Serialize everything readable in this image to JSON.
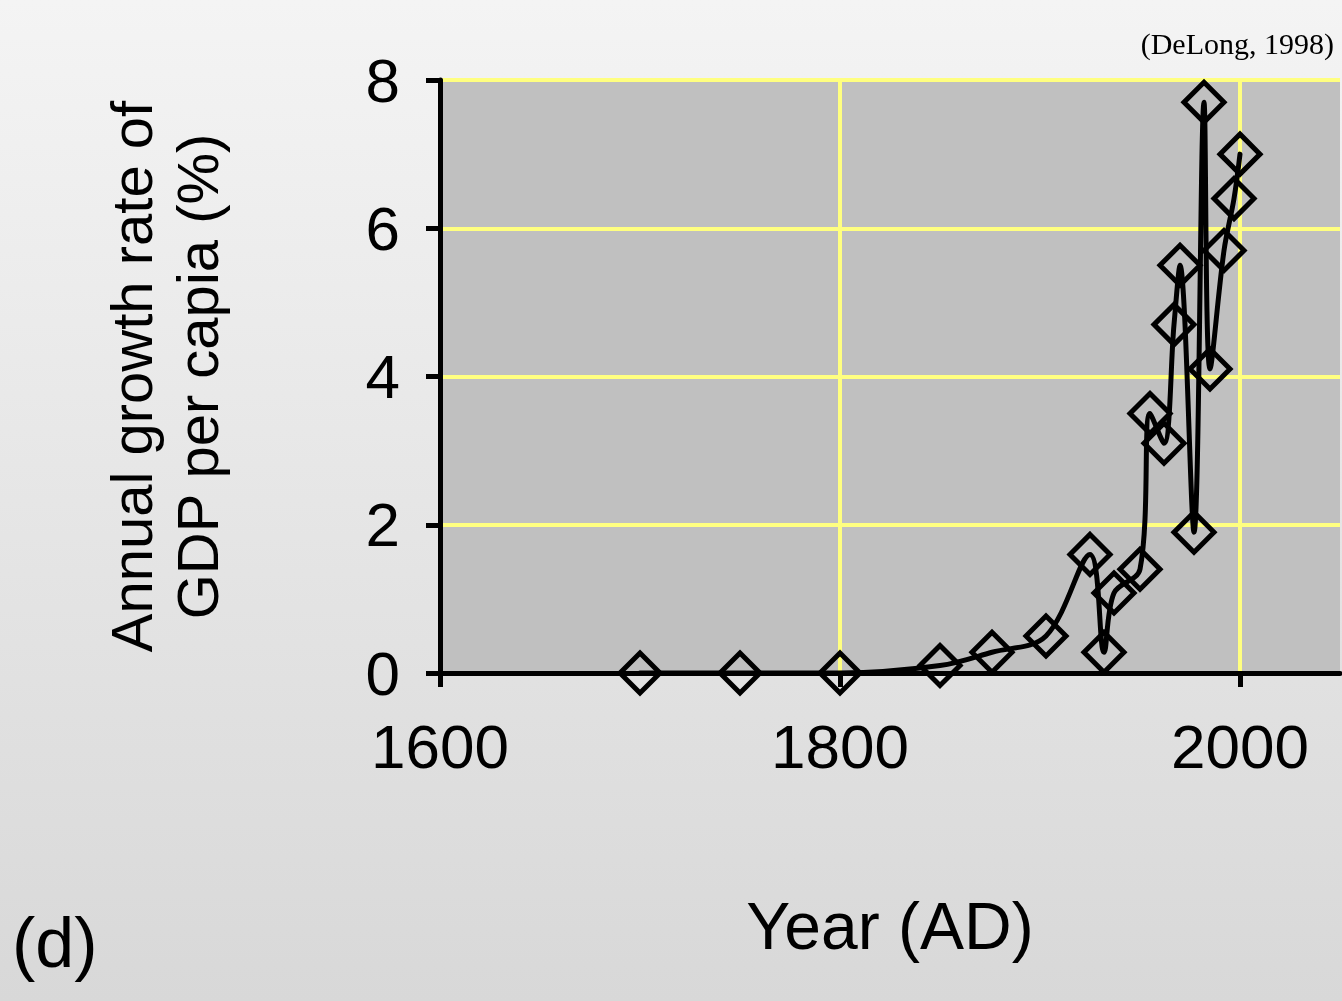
{
  "chart_data": {
    "type": "line",
    "xlabel": "Year (AD)",
    "ylabel": "Annual growth rate of\nGDP per capia (%)",
    "annotations": [
      "(DeLong, 1998)",
      "(d)"
    ],
    "x": [
      1700,
      1750,
      1800,
      1850,
      1876,
      1903,
      1925,
      1932,
      1937,
      1950,
      1955,
      1962,
      1967,
      1970,
      1977,
      1982,
      1985,
      1992,
      1997,
      2000
    ],
    "series": [
      {
        "color": "#000000",
        "values": [
          0,
          0,
          0,
          0.1,
          0.28,
          0.5,
          1.6,
          0.28,
          1.08,
          1.4,
          3.5,
          3.1,
          4.7,
          5.5,
          1.9,
          7.7,
          4.1,
          5.7,
          6.4,
          7.0
        ]
      }
    ],
    "xlim": [
      1600,
      2050
    ],
    "xticks": [
      1600,
      1800,
      2000
    ],
    "ylim": [
      0,
      8
    ],
    "yticks": [
      0,
      2,
      4,
      6,
      8
    ],
    "grid": true,
    "marker": "diamond",
    "line_style": "solid"
  }
}
